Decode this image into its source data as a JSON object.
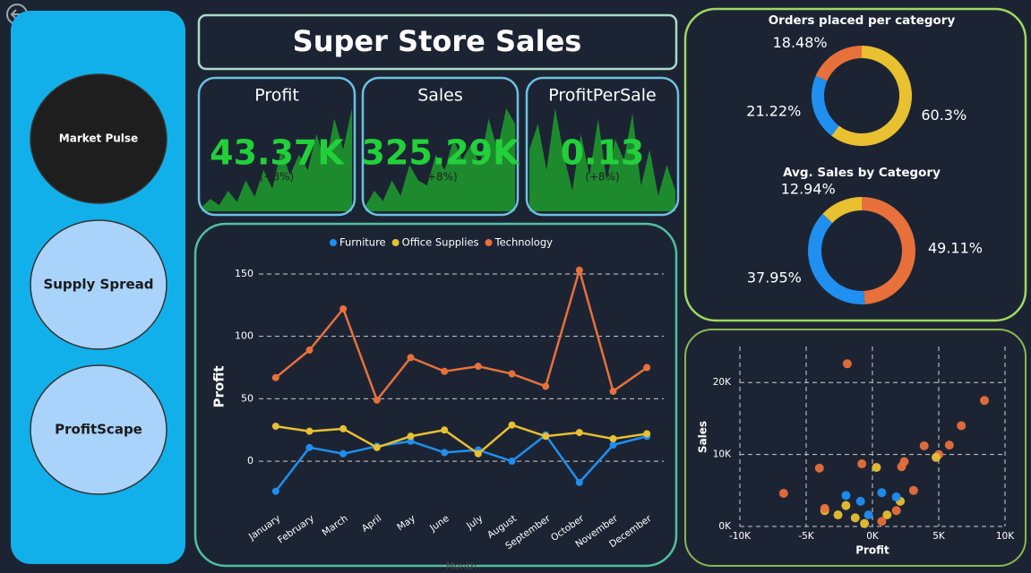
{
  "title": "Super Store Sales",
  "nav": [
    "Market Pulse",
    "Supply Spread",
    "ProfitScape"
  ],
  "kpis": [
    {
      "label": "Profit",
      "value": "43.37K",
      "delta": "(+8%)",
      "spark": [
        4,
        12,
        6,
        20,
        9,
        30,
        14,
        40,
        22,
        60,
        35,
        55,
        40,
        75,
        45,
        90,
        60,
        100
      ]
    },
    {
      "label": "Sales",
      "value": "325.29K",
      "delta": "(+8%)",
      "spark": [
        5,
        20,
        10,
        30,
        15,
        45,
        30,
        25,
        55,
        40,
        70,
        50,
        65,
        45,
        90,
        60,
        100,
        85
      ]
    },
    {
      "label": "ProfitPerSale",
      "value": "0.13",
      "delta": "(+8%)",
      "spark": [
        60,
        85,
        40,
        100,
        55,
        20,
        75,
        35,
        90,
        30,
        70,
        50,
        95,
        25,
        60,
        15,
        45,
        20
      ]
    }
  ],
  "chart_data": [
    {
      "type": "line",
      "y_label": "Profit",
      "x_label": "Month",
      "categories": [
        "January",
        "February",
        "March",
        "April",
        "May",
        "June",
        "July",
        "August",
        "September",
        "October",
        "November",
        "December"
      ],
      "series": [
        {
          "name": "Furniture",
          "color": "#1f8ff0",
          "values": [
            -24,
            11,
            6,
            12,
            16,
            7,
            9,
            0,
            21,
            -17,
            13,
            20
          ]
        },
        {
          "name": "Office Supplies",
          "color": "#e8c030",
          "values": [
            28,
            24,
            26,
            11,
            20,
            25,
            6,
            29,
            20,
            23,
            18,
            22
          ]
        },
        {
          "name": "Technology",
          "color": "#e8703a",
          "values": [
            67,
            89,
            122,
            49,
            83,
            72,
            76,
            70,
            60,
            153,
            56,
            75
          ]
        }
      ],
      "ylim": [
        -30,
        160
      ],
      "yticks": [
        0,
        50,
        100,
        150
      ],
      "grid": true
    },
    {
      "type": "donut",
      "title": "Orders placed per category",
      "values": [
        60.3,
        21.22,
        18.48
      ],
      "value_labels": [
        "60.3%",
        "21.22%",
        "18.48%"
      ],
      "colors": [
        "#e8c030",
        "#1f8ff0",
        "#e8703a"
      ]
    },
    {
      "type": "donut",
      "title": "Avg. Sales by Category",
      "values": [
        49.11,
        37.95,
        12.94
      ],
      "value_labels": [
        "49.11%",
        "37.95%",
        "12.94%"
      ],
      "colors": [
        "#e8703a",
        "#1f8ff0",
        "#e8c030"
      ]
    },
    {
      "type": "scatter",
      "x_label": "Profit",
      "y_label": "Sales",
      "x": [
        -1900,
        8450,
        6700,
        5800,
        5000,
        -6700,
        -4000,
        -800,
        300,
        2200,
        2400,
        3900,
        4800,
        -2000,
        -900,
        700,
        -3600,
        -2600,
        -1300,
        -3600,
        1100,
        1800,
        3100,
        2100,
        -300,
        -600,
        700,
        1800,
        -2000
      ],
      "values": [
        22600,
        17500,
        14000,
        11300,
        10000,
        4600,
        8100,
        8700,
        8200,
        8300,
        9000,
        11200,
        9600,
        4300,
        3500,
        4700,
        2200,
        1600,
        1200,
        2500,
        1600,
        2200,
        5000,
        3500,
        1600,
        400,
        700,
        4100,
        2900
      ],
      "colors": [
        "#e8703a",
        "#e8703a",
        "#e8703a",
        "#e8703a",
        "#e8703a",
        "#e8703a",
        "#e8703a",
        "#e8703a",
        "#e8c030",
        "#e8703a",
        "#e8703a",
        "#e8703a",
        "#e8c030",
        "#1f8ff0",
        "#1f8ff0",
        "#1f8ff0",
        "#e8c030",
        "#e8c030",
        "#e8c030",
        "#e8703a",
        "#e8c030",
        "#e8703a",
        "#e8703a",
        "#e8c030",
        "#1f8ff0",
        "#e8c030",
        "#e8703a",
        "#1f8ff0",
        "#e8c030"
      ],
      "xlim": [
        -10000,
        10000
      ],
      "ylim": [
        0,
        25000
      ],
      "xticks": [
        {
          "value": -10000,
          "label": "-10K"
        },
        {
          "value": -5000,
          "label": "-5K"
        },
        {
          "value": 0,
          "label": "0K"
        },
        {
          "value": 5000,
          "label": "5K"
        },
        {
          "value": 10000,
          "label": "10K"
        }
      ],
      "yticks": [
        {
          "value": 0,
          "label": "0K"
        },
        {
          "value": 10000,
          "label": "10K"
        },
        {
          "value": 20000,
          "label": "20K"
        }
      ],
      "grid": true
    }
  ]
}
